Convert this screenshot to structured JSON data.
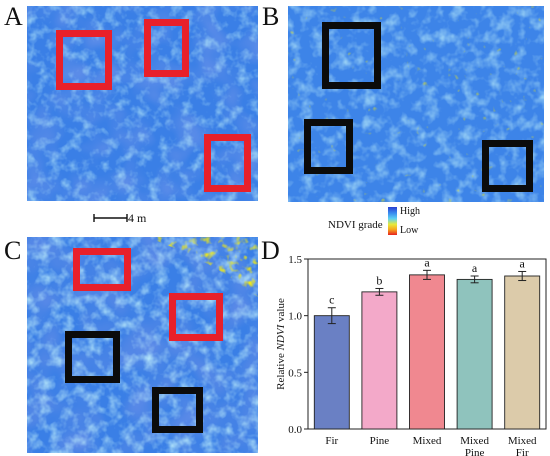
{
  "panels": [
    {
      "letter": "A"
    },
    {
      "letter": "B"
    },
    {
      "letter": "C"
    },
    {
      "letter": "D"
    }
  ],
  "scalebar": {
    "label": "4 m"
  },
  "legend": {
    "title": "NDVI grade",
    "high": "High",
    "low": "Low"
  },
  "colors": {
    "map_base": "#3a7fe6",
    "map_dark": "#2f59d6",
    "map_light": "#74c6f2",
    "map_yellow": "#ffe000",
    "box_red": "#e8202a",
    "box_black": "#0b0b0b"
  },
  "chart_data": {
    "type": "bar",
    "categories": [
      "Fir",
      "Pine",
      "Mixed",
      "Mixed\nPine",
      "Mixed\nFir"
    ],
    "values": [
      1.0,
      1.21,
      1.36,
      1.32,
      1.35
    ],
    "errors": [
      0.07,
      0.03,
      0.04,
      0.03,
      0.04
    ],
    "significance": [
      "c",
      "b",
      "a",
      "a",
      "a"
    ],
    "bar_colors": [
      "#6a80c4",
      "#f3a9c9",
      "#f08890",
      "#8fc3bd",
      "#dccbaa"
    ],
    "ylabel": "Relative NDVI value",
    "ylim": [
      0.0,
      1.5
    ],
    "yticks": [
      "0.0",
      "0.5",
      "1.0",
      "1.5"
    ],
    "grid": false
  }
}
